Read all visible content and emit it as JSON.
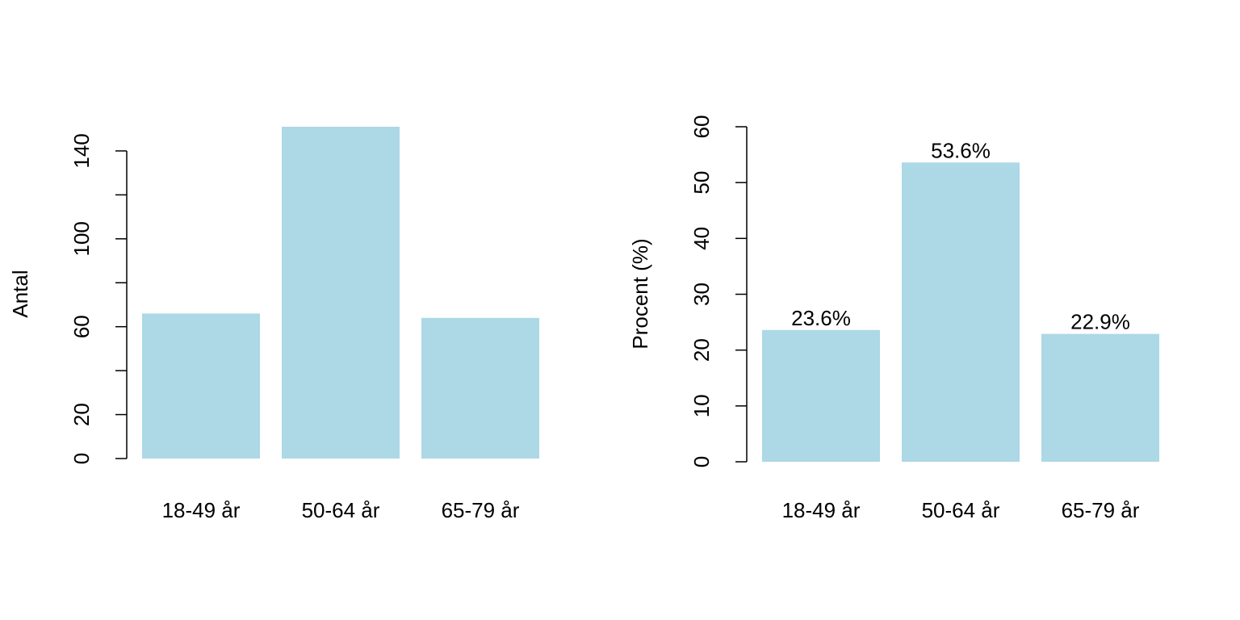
{
  "bar_color": "#add8e6",
  "chart_data": [
    {
      "type": "bar",
      "categories": [
        "18-49 år",
        "50-64 år",
        "65-79 år"
      ],
      "values": [
        66,
        151,
        64
      ],
      "ylabel": "Antal",
      "ylim": [
        0,
        151
      ],
      "yticks": [
        0,
        20,
        40,
        60,
        80,
        100,
        120,
        140
      ],
      "ytick_labels": [
        "0",
        "20",
        "",
        "60",
        "",
        "100",
        "",
        "140"
      ],
      "data_labels": [],
      "grid": false
    },
    {
      "type": "bar",
      "categories": [
        "18-49 år",
        "50-64 år",
        "65-79 år"
      ],
      "values": [
        23.6,
        53.6,
        22.9
      ],
      "ylabel": "Procent (%)",
      "ylim": [
        0,
        60
      ],
      "yticks": [
        0,
        10,
        20,
        30,
        40,
        50,
        60
      ],
      "ytick_labels": [
        "0",
        "10",
        "20",
        "30",
        "40",
        "50",
        "60"
      ],
      "data_labels": [
        "23.6%",
        "53.6%",
        "22.9%"
      ],
      "grid": false
    }
  ]
}
